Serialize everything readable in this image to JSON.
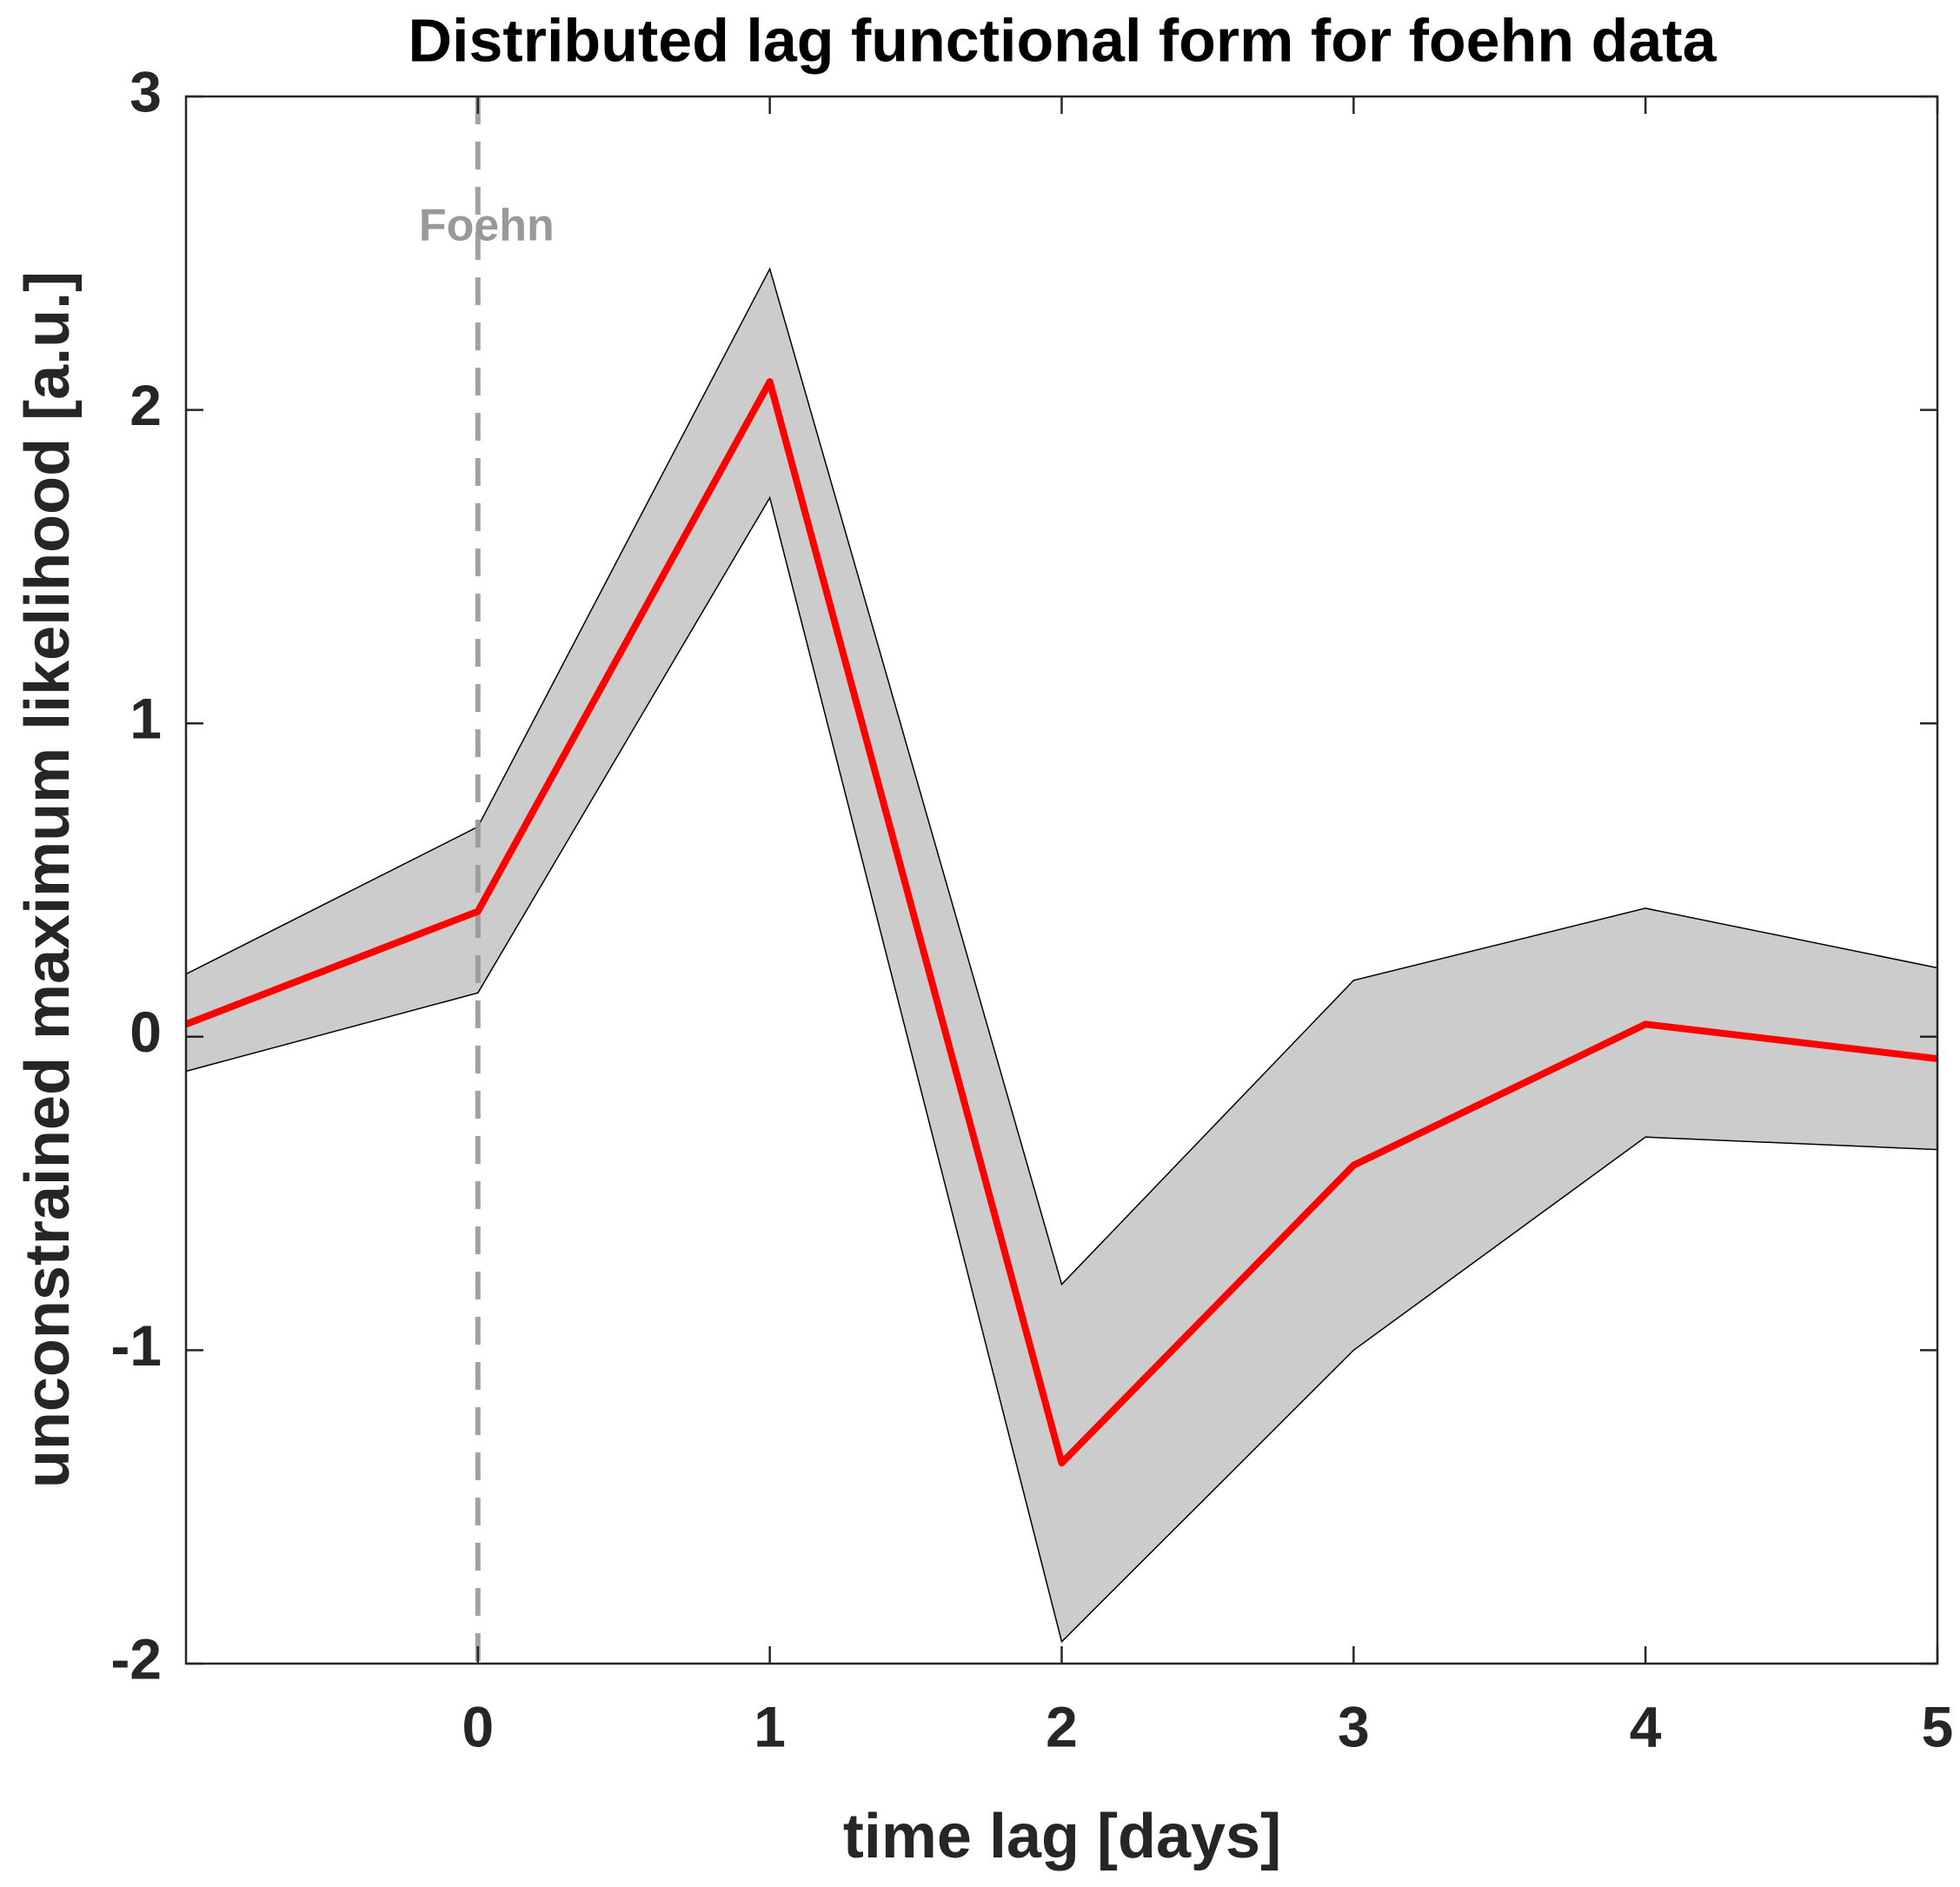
{
  "chart_data": {
    "type": "line",
    "title": "Distributed lag functional form for foehn data",
    "x_label": "time lag [days]",
    "y_label": "unconstrained maximum likelihood [a.u.]",
    "x": [
      -1,
      0,
      1,
      2,
      3,
      4,
      5
    ],
    "series": [
      {
        "color": "#ff0000",
        "values": [
          0.04,
          0.4,
          2.09,
          -1.36,
          -0.41,
          0.04,
          -0.07
        ]
      }
    ],
    "band": {
      "color": "#cccccc",
      "lower": [
        -0.11,
        0.14,
        1.72,
        -1.93,
        -1.0,
        -0.32,
        -0.36
      ],
      "upper": [
        0.2,
        0.67,
        2.45,
        -0.79,
        0.18,
        0.41,
        0.22
      ]
    },
    "annotation": {
      "text": "Foehn",
      "x": 0,
      "color": "#999999"
    },
    "xlim": [
      -1,
      5
    ],
    "xticks": [
      0,
      1,
      2,
      3,
      4,
      5
    ],
    "ylim": [
      -2,
      3
    ],
    "yticks": [
      -2,
      -1,
      0,
      1,
      2,
      3
    ]
  }
}
